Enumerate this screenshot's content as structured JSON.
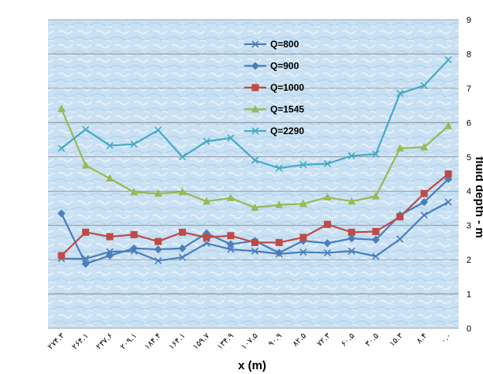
{
  "chart_data": {
    "type": "line",
    "title": "",
    "xlabel": "x (m)",
    "ylabel": "fluid depth - m",
    "ylim": [
      0,
      9
    ],
    "yticks": [
      "0",
      "1",
      "2",
      "3",
      "4",
      "5",
      "6",
      "7",
      "8",
      "9"
    ],
    "categories": [
      "۲۷۴.۳",
      "۲۶۴.۱",
      "۲۳۷.۶",
      "۲۰۹.۱",
      "۱۸۴.۴",
      "۱۶۴.۱",
      "۱۵۹.۷",
      "۱۳۴.۹",
      "۱۰۷.۵",
      "۹۰.۹",
      "۸۲.۵",
      "۷۲.۳",
      "۶۰.۵",
      "۳۰.۵",
      "۱۵.۳",
      "۸.۴",
      "۰.۰"
    ],
    "grid": true,
    "legend": "top-center",
    "series": [
      {
        "name": "Q=800",
        "color": "#4a7ebb",
        "marker": "x",
        "values": [
          2.03,
          2.03,
          2.23,
          2.25,
          1.97,
          2.07,
          2.48,
          2.3,
          2.25,
          2.17,
          2.22,
          2.2,
          2.25,
          2.1,
          2.6,
          3.3,
          3.68
        ]
      },
      {
        "name": "Q=900",
        "color": "#4a7ebb",
        "marker": "diamond",
        "values": [
          3.35,
          1.88,
          2.12,
          2.33,
          2.3,
          2.33,
          2.77,
          2.45,
          2.55,
          2.2,
          2.55,
          2.48,
          2.62,
          2.58,
          3.3,
          3.68,
          4.35
        ]
      },
      {
        "name": "Q=1000",
        "color": "#be4b48",
        "marker": "square",
        "values": [
          2.12,
          2.8,
          2.67,
          2.73,
          2.53,
          2.8,
          2.65,
          2.7,
          2.5,
          2.5,
          2.65,
          3.03,
          2.8,
          2.82,
          3.25,
          3.93,
          4.5
        ]
      },
      {
        "name": "Q=1545",
        "color": "#98b954",
        "marker": "triangle",
        "values": [
          6.4,
          4.75,
          4.37,
          3.97,
          3.93,
          3.98,
          3.7,
          3.8,
          3.52,
          3.6,
          3.63,
          3.82,
          3.7,
          3.85,
          5.25,
          5.28,
          5.9
        ]
      },
      {
        "name": "Q=2290",
        "color": "#46aac5",
        "marker": "x",
        "values": [
          5.25,
          5.8,
          5.33,
          5.37,
          5.78,
          5.0,
          5.45,
          5.55,
          4.9,
          4.67,
          4.77,
          4.8,
          5.03,
          5.08,
          6.85,
          7.08,
          7.83
        ]
      }
    ]
  }
}
